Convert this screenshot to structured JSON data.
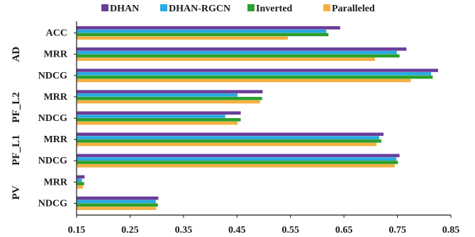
{
  "chart_data": {
    "type": "bar",
    "orientation": "horizontal",
    "groups": [
      {
        "name": "AD",
        "categories": [
          "ACC",
          "MRR",
          "NDCG"
        ]
      },
      {
        "name": "PF_L2",
        "categories": [
          "MRR",
          "NDCG"
        ]
      },
      {
        "name": "PF_L1",
        "categories": [
          "MRR",
          "NDCG"
        ]
      },
      {
        "name": "PV",
        "categories": [
          "MRR",
          "NDCG"
        ]
      }
    ],
    "categories": [
      "AD ACC",
      "AD MRR",
      "AD NDCG",
      "PF_L2 MRR",
      "PF_L2 NDCG",
      "PF_L1 MRR",
      "PF_L1 NDCG",
      "PV MRR",
      "PV NDCG"
    ],
    "category_labels": [
      "ACC",
      "MRR",
      "NDCG",
      "MRR",
      "NDCG",
      "MRR",
      "NDCG",
      "MRR",
      "NDCG"
    ],
    "series": [
      {
        "name": "DHAN",
        "color": "#6a3d9a",
        "values": [
          0.643,
          0.767,
          0.826,
          0.498,
          0.457,
          0.724,
          0.754,
          0.165,
          0.303
        ]
      },
      {
        "name": "DHAN-RGCN",
        "color": "#29aae2",
        "values": [
          0.617,
          0.749,
          0.813,
          0.451,
          0.428,
          0.716,
          0.748,
          0.16,
          0.298
        ]
      },
      {
        "name": "Inverted",
        "color": "#2ca02c",
        "values": [
          0.621,
          0.754,
          0.816,
          0.497,
          0.457,
          0.72,
          0.751,
          0.164,
          0.302
        ]
      },
      {
        "name": "Paralleled",
        "color": "#f5b041",
        "values": [
          0.545,
          0.708,
          0.775,
          0.493,
          0.451,
          0.711,
          0.745,
          0.162,
          0.299
        ]
      }
    ],
    "xlim": [
      0.15,
      0.85
    ],
    "x_ticks": [
      "0.15",
      "0.25",
      "0.35",
      "0.45",
      "0.55",
      "0.65",
      "0.75",
      "0.85"
    ],
    "legend_position": "top",
    "grid": false
  }
}
